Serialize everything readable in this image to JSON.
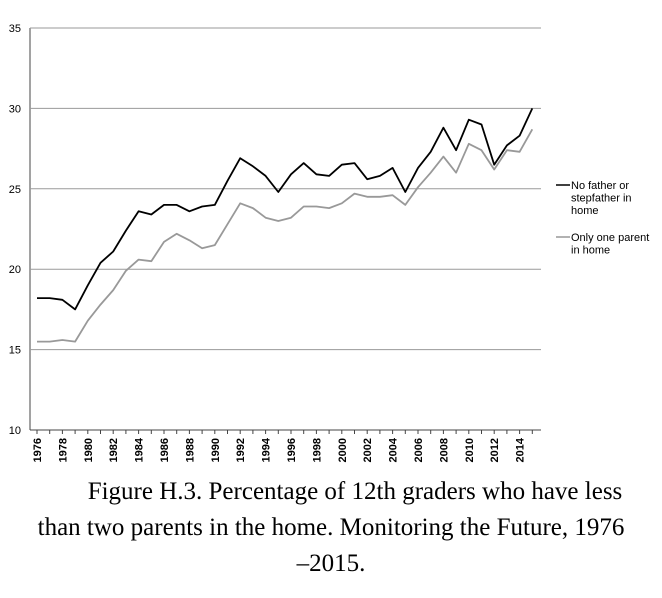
{
  "chart_data": {
    "type": "line",
    "x": [
      1976,
      1977,
      1978,
      1979,
      1980,
      1981,
      1982,
      1983,
      1984,
      1985,
      1986,
      1987,
      1988,
      1989,
      1990,
      1991,
      1992,
      1993,
      1994,
      1995,
      1996,
      1997,
      1998,
      1999,
      2000,
      2001,
      2002,
      2003,
      2004,
      2005,
      2006,
      2007,
      2008,
      2009,
      2010,
      2011,
      2012,
      2013,
      2014,
      2015
    ],
    "x_tick_labels": [
      "1976",
      "1978",
      "1980",
      "1982",
      "1984",
      "1986",
      "1988",
      "1990",
      "1992",
      "1994",
      "1996",
      "1998",
      "2000",
      "2002",
      "2004",
      "2006",
      "2008",
      "2010",
      "2012",
      "2014"
    ],
    "ylim": [
      10,
      35
    ],
    "y_ticks": [
      10,
      15,
      20,
      25,
      30,
      35
    ],
    "grid": true,
    "legend_position": "right",
    "series": [
      {
        "name": "No father or stepfather in home",
        "color": "#000000",
        "values": [
          18.2,
          18.2,
          18.1,
          17.5,
          19.0,
          20.4,
          21.1,
          22.4,
          23.6,
          23.4,
          24.0,
          24.0,
          23.6,
          23.9,
          24.0,
          25.5,
          26.9,
          26.4,
          25.8,
          24.8,
          25.9,
          26.6,
          25.9,
          25.8,
          26.5,
          26.6,
          25.6,
          25.8,
          26.3,
          24.8,
          26.3,
          27.3,
          28.8,
          27.4,
          29.3,
          29.0,
          26.5,
          27.7,
          28.3,
          30.0
        ]
      },
      {
        "name": "Only one parent in home",
        "color": "#999999",
        "values": [
          15.5,
          15.5,
          15.6,
          15.5,
          16.8,
          17.8,
          18.7,
          19.9,
          20.6,
          20.5,
          21.7,
          22.2,
          21.8,
          21.3,
          21.5,
          22.8,
          24.1,
          23.8,
          23.2,
          23.0,
          23.2,
          23.9,
          23.9,
          23.8,
          24.1,
          24.7,
          24.5,
          24.5,
          24.6,
          24.0,
          25.1,
          26.0,
          27.0,
          26.0,
          27.8,
          27.4,
          26.2,
          27.4,
          27.3,
          28.7
        ]
      }
    ],
    "legend_lines": [
      [
        "No father or",
        "stepfather in",
        "home"
      ],
      [
        "Only one parent",
        "in home"
      ]
    ]
  },
  "caption": {
    "lines": [
      "Figure H.3. Percentage of 12th graders who have less",
      "than two parents in the home. Monitoring the Future, 1976",
      "–2015."
    ]
  }
}
